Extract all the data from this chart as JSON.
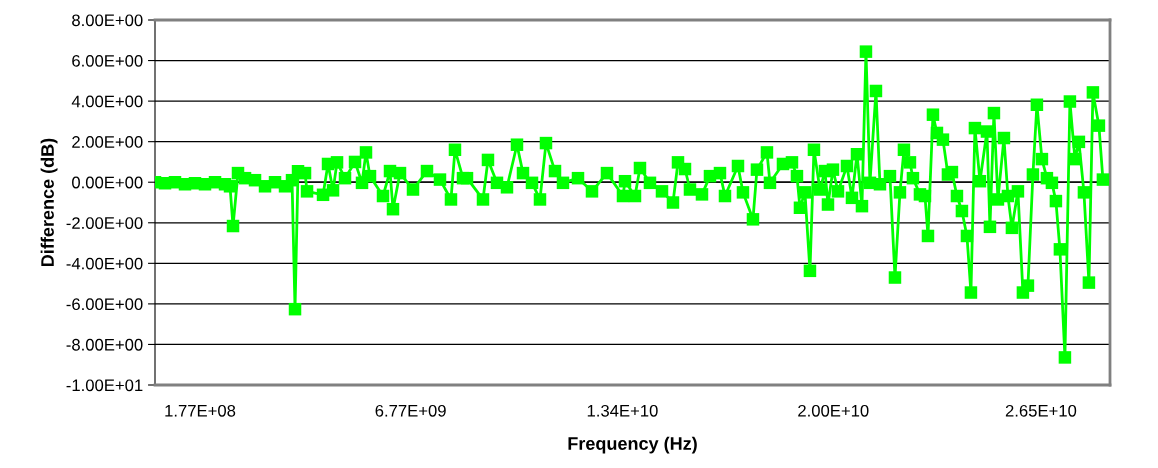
{
  "chart_data": {
    "type": "line",
    "xlabel": "Frequency (Hz)",
    "ylabel": "Difference (dB)",
    "xlim": [
      -1232000000.0,
      28662000000.0
    ],
    "xticks": [
      {
        "value": 177000000.0,
        "label": "1.77E+08"
      },
      {
        "value": 6770000000.0,
        "label": "6.77E+09"
      },
      {
        "value": 13400000000.0,
        "label": "1.34E+10"
      },
      {
        "value": 20000000000.0,
        "label": "2.00E+10"
      },
      {
        "value": 26500000000.0,
        "label": "2.65E+10"
      }
    ],
    "ylim": [
      -10,
      8
    ],
    "yticks": [
      {
        "value": -10,
        "label": "-1.00E+01"
      },
      {
        "value": -8,
        "label": "-8.00E+00"
      },
      {
        "value": -6,
        "label": "-6.00E+00"
      },
      {
        "value": -4,
        "label": "-4.00E+00"
      },
      {
        "value": -2,
        "label": "-2.00E+00"
      },
      {
        "value": 0,
        "label": "0.00E+00"
      },
      {
        "value": 2,
        "label": "2.00E+00"
      },
      {
        "value": 4,
        "label": "4.00E+00"
      },
      {
        "value": 6,
        "label": "6.00E+00"
      },
      {
        "value": 8,
        "label": "8.00E+00"
      }
    ],
    "grid": "y",
    "marker": "square",
    "line_style": "solid",
    "legend": false,
    "series": [
      {
        "color": "#00ff00",
        "x": [
          -1232000000.0,
          -919000000.0,
          -606000000.0,
          -293000000.0,
          20000000.0,
          333000000.0,
          647000000.0,
          960000000.0,
          1116000000.0,
          1210000000.0,
          1366000000.0,
          1586000000.0,
          1899000000.0,
          2212000000.0,
          2525000000.0,
          2838000000.0,
          3057000000.0,
          3151000000.0,
          3245000000.0,
          3464000000.0,
          3527000000.0,
          4028000000.0,
          4184000000.0,
          4341000000.0,
          4466000000.0,
          4716000000.0,
          5029000000.0,
          5248000000.0,
          5373000000.0,
          5498000000.0,
          5905000000.0,
          6124000000.0,
          6218000000.0,
          6437000000.0,
          6844000000.0,
          7282000000.0,
          7689000000.0,
          8033000000.0,
          8158000000.0,
          8409000000.0,
          8534000000.0,
          9035000000.0,
          9191000000.0,
          9473000000.0,
          9786000000.0,
          10099000000.0,
          10287000000.0,
          10569000000.0,
          10819000000.0,
          11007000000.0,
          11289000000.0,
          11539000000.0,
          12009000000.0,
          12447000000.0,
          12916000000.0,
          13417000000.0,
          13480000000.0,
          13793000000.0,
          13949000000.0,
          14262000000.0,
          14638000000.0,
          14982000000.0,
          15139000000.0,
          15358000000.0,
          15514000000.0,
          15890000000.0,
          16140000000.0,
          16453000000.0,
          16610000000.0,
          17017000000.0,
          17173000000.0,
          17486000000.0,
          17611000000.0,
          17924000000.0,
          18018000000.0,
          18425000000.0,
          18707000000.0,
          18863000000.0,
          18957000000.0,
          19113000000.0,
          19270000000.0,
          19395000000.0,
          19583000000.0,
          19740000000.0,
          19834000000.0,
          19990000000.0,
          20147000000.0,
          20429000000.0,
          20585000000.0,
          20742000000.0,
          20898000000.0,
          21023000000.0,
          21148000000.0,
          21336000000.0,
          21461000000.0,
          21774000000.0,
          21931000000.0,
          22087000000.0,
          22212000000.0,
          22400000000.0,
          22494000000.0,
          22713000000.0,
          22870000000.0,
          22964000000.0,
          23120000000.0,
          23245000000.0,
          23433000000.0,
          23589000000.0,
          23714000000.0,
          23871000000.0,
          24027000000.0,
          24184000000.0,
          24309000000.0,
          24434000000.0,
          24591000000.0,
          24810000000.0,
          24904000000.0,
          25029000000.0,
          25154000000.0,
          25342000000.0,
          25467000000.0,
          25592000000.0,
          25780000000.0,
          25936000000.0,
          26093000000.0,
          26249000000.0,
          26374000000.0,
          26531000000.0,
          26687000000.0,
          26844000000.0,
          26969000000.0,
          27094000000.0,
          27251000000.0,
          27407000000.0,
          27564000000.0,
          27689000000.0,
          27846000000.0,
          28002000000.0,
          28127000000.0,
          28315000000.0,
          28440000000.0
        ],
        "values": [
          0.0,
          -0.05,
          0.0,
          -0.1,
          -0.05,
          -0.1,
          0.0,
          -0.1,
          -0.2,
          -2.16,
          0.45,
          0.2,
          0.1,
          -0.2,
          0.0,
          -0.2,
          0.1,
          -6.26,
          0.54,
          0.45,
          -0.45,
          -0.62,
          0.9,
          -0.4,
          0.98,
          0.2,
          1.0,
          -0.03,
          1.47,
          0.3,
          -0.68,
          0.55,
          -1.33,
          0.45,
          -0.36,
          0.55,
          0.13,
          -0.85,
          1.6,
          0.2,
          0.2,
          -0.85,
          1.1,
          -0.03,
          -0.25,
          1.85,
          0.45,
          -0.03,
          -0.85,
          1.93,
          0.55,
          -0.03,
          0.2,
          -0.45,
          0.45,
          -0.68,
          0.05,
          -0.68,
          0.7,
          -0.03,
          -0.45,
          -1.0,
          0.98,
          0.65,
          -0.36,
          -0.6,
          0.3,
          0.45,
          -0.68,
          0.8,
          -0.5,
          -1.83,
          0.62,
          1.47,
          -0.03,
          0.9,
          0.98,
          0.3,
          -1.26,
          -0.5,
          -4.37,
          1.6,
          -0.36,
          0.55,
          -1.1,
          0.62,
          -0.45,
          0.8,
          -0.77,
          1.38,
          -1.18,
          6.44,
          -0.03,
          4.5,
          -0.1,
          0.3,
          -4.7,
          -0.5,
          1.6,
          0.98,
          0.2,
          -0.6,
          -0.68,
          -2.65,
          3.33,
          2.43,
          2.1,
          0.38,
          0.5,
          -0.68,
          -1.42,
          -2.65,
          -5.44,
          2.67,
          0.05,
          2.5,
          -2.2,
          3.41,
          -0.85,
          2.18,
          -0.68,
          -2.25,
          -0.45,
          -5.44,
          -5.1,
          0.38,
          3.82,
          1.14,
          0.2,
          -0.03,
          -0.93,
          -3.31,
          -8.64,
          3.98,
          1.14,
          1.99,
          -0.5,
          -4.95,
          4.43,
          2.79,
          0.13
        ]
      }
    ]
  }
}
